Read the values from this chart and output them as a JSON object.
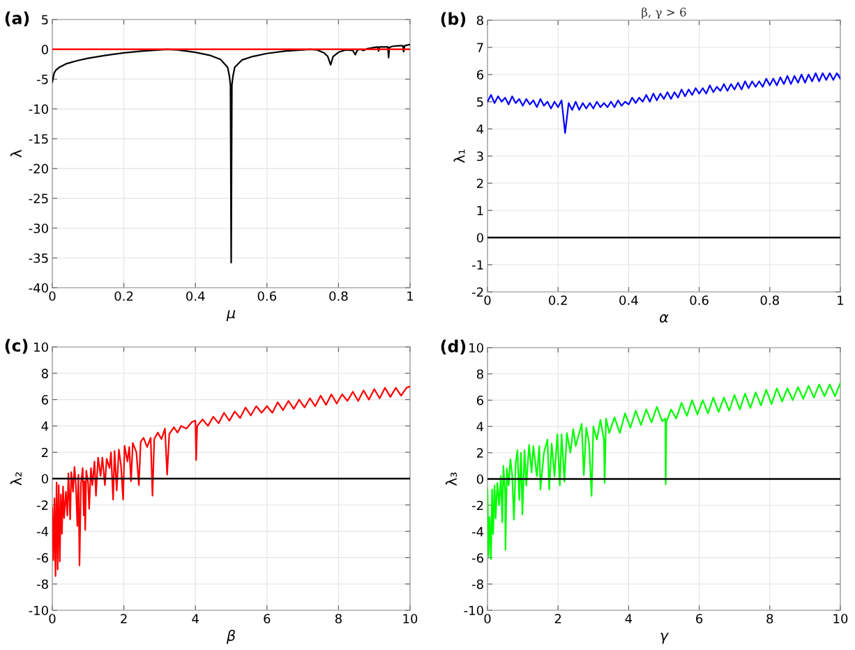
{
  "chart_data": [
    {
      "type": "line",
      "annotations": [
        "(a)"
      ],
      "xlabel": "μ",
      "ylabel": "λ",
      "xlim": [
        0,
        1
      ],
      "ylim": [
        -40,
        5
      ],
      "xticks": [
        0,
        0.2,
        0.4,
        0.6,
        0.8,
        1
      ],
      "yticks": [
        -40,
        -35,
        -30,
        -25,
        -20,
        -15,
        -10,
        -5,
        0,
        5
      ],
      "grid": true,
      "ref_lines": [
        {
          "axis": "y",
          "value": 0,
          "color": "#ff0000"
        }
      ],
      "series": [
        {
          "color": "#000000",
          "x": [
            0,
            0.005,
            0.01,
            0.02,
            0.04,
            0.07,
            0.1,
            0.15,
            0.2,
            0.25,
            0.3,
            0.32,
            0.35,
            0.4,
            0.44,
            0.47,
            0.49,
            0.495,
            0.498,
            0.5,
            0.502,
            0.505,
            0.51,
            0.53,
            0.56,
            0.6,
            0.65,
            0.7,
            0.72,
            0.74,
            0.76,
            0.77,
            0.778,
            0.785,
            0.8,
            0.82,
            0.84,
            0.847,
            0.852,
            0.86,
            0.87,
            0.88,
            0.89,
            0.9,
            0.91,
            0.912,
            0.915,
            0.93,
            0.938,
            0.94,
            0.942,
            0.95,
            0.97,
            0.98,
            0.982,
            0.985,
            1
          ],
          "values": [
            -5.5,
            -4,
            -3.5,
            -3,
            -2.4,
            -1.9,
            -1.5,
            -1.0,
            -0.6,
            -0.3,
            -0.1,
            0,
            -0.1,
            -0.5,
            -1.0,
            -1.7,
            -3,
            -4.5,
            -6,
            -35.8,
            -6,
            -4.5,
            -3,
            -1.8,
            -1.2,
            -0.7,
            -0.3,
            -0.1,
            0,
            -0.1,
            -0.6,
            -1.2,
            -2.6,
            -1.2,
            -0.5,
            -0.1,
            -0.2,
            -0.9,
            -0.2,
            0,
            -0.2,
            0.1,
            0.2,
            0.3,
            0.4,
            -0.3,
            0.4,
            0.4,
            0.4,
            -1.4,
            0.3,
            0.5,
            0.6,
            0.6,
            -0.4,
            0.6,
            0.8
          ]
        }
      ]
    },
    {
      "type": "line",
      "annotations": [
        "(b)"
      ],
      "title": "β, γ > 6",
      "xlabel": "α",
      "ylabel": "λ₁",
      "xlim": [
        0,
        1
      ],
      "ylim": [
        -2,
        8
      ],
      "xticks": [
        0,
        0.2,
        0.4,
        0.6,
        0.8,
        1
      ],
      "yticks": [
        -2,
        -1,
        0,
        1,
        2,
        3,
        4,
        5,
        6,
        7,
        8
      ],
      "grid": true,
      "ref_lines": [
        {
          "axis": "y",
          "value": 0,
          "color": "#000000"
        }
      ],
      "series": [
        {
          "color": "#0000ff",
          "x": [
            0,
            0.01,
            0.02,
            0.03,
            0.04,
            0.05,
            0.06,
            0.07,
            0.08,
            0.09,
            0.1,
            0.11,
            0.12,
            0.13,
            0.14,
            0.15,
            0.16,
            0.17,
            0.18,
            0.19,
            0.2,
            0.21,
            0.22,
            0.23,
            0.24,
            0.25,
            0.26,
            0.27,
            0.28,
            0.29,
            0.3,
            0.31,
            0.32,
            0.33,
            0.34,
            0.35,
            0.36,
            0.37,
            0.38,
            0.39,
            0.4,
            0.41,
            0.42,
            0.43,
            0.44,
            0.45,
            0.46,
            0.47,
            0.48,
            0.49,
            0.5,
            0.51,
            0.52,
            0.53,
            0.54,
            0.55,
            0.56,
            0.57,
            0.58,
            0.59,
            0.6,
            0.61,
            0.62,
            0.63,
            0.64,
            0.65,
            0.66,
            0.67,
            0.68,
            0.69,
            0.7,
            0.71,
            0.72,
            0.73,
            0.74,
            0.75,
            0.76,
            0.77,
            0.78,
            0.79,
            0.8,
            0.81,
            0.82,
            0.83,
            0.84,
            0.85,
            0.86,
            0.87,
            0.88,
            0.89,
            0.9,
            0.91,
            0.92,
            0.93,
            0.94,
            0.95,
            0.96,
            0.97,
            0.98,
            0.99,
            1
          ],
          "values": [
            5.0,
            5.25,
            4.95,
            5.2,
            5.0,
            5.15,
            4.9,
            5.2,
            4.95,
            5.1,
            4.85,
            5.1,
            4.9,
            5.05,
            4.8,
            5.1,
            4.85,
            5.0,
            4.75,
            5.0,
            4.8,
            5.05,
            3.85,
            4.95,
            4.7,
            5.0,
            4.7,
            4.95,
            4.75,
            4.95,
            4.75,
            5.0,
            4.8,
            4.95,
            4.8,
            5.0,
            4.8,
            5.05,
            4.85,
            5.0,
            4.9,
            5.15,
            4.95,
            5.15,
            5.0,
            5.25,
            5.0,
            5.3,
            5.05,
            5.3,
            5.1,
            5.35,
            5.1,
            5.35,
            5.15,
            5.45,
            5.2,
            5.45,
            5.25,
            5.5,
            5.3,
            5.5,
            5.3,
            5.6,
            5.35,
            5.55,
            5.4,
            5.65,
            5.4,
            5.65,
            5.45,
            5.7,
            5.45,
            5.75,
            5.5,
            5.75,
            5.55,
            5.75,
            5.55,
            5.85,
            5.6,
            5.85,
            5.6,
            5.9,
            5.65,
            5.95,
            5.65,
            5.95,
            5.7,
            6.0,
            5.7,
            6.0,
            5.75,
            6.05,
            5.75,
            6.05,
            5.8,
            6.05,
            5.8,
            6.05,
            5.85
          ]
        }
      ]
    },
    {
      "type": "line",
      "annotations": [
        "(c)"
      ],
      "xlabel": "β",
      "ylabel": "λ₂",
      "xlim": [
        0,
        10
      ],
      "ylim": [
        -10,
        10
      ],
      "xticks": [
        0,
        2,
        4,
        6,
        8,
        10
      ],
      "yticks": [
        -10,
        -8,
        -6,
        -4,
        -2,
        0,
        2,
        4,
        6,
        8,
        10
      ],
      "grid": true,
      "ref_lines": [
        {
          "axis": "y",
          "value": 0,
          "color": "#000000"
        }
      ],
      "series": [
        {
          "color": "#ff0000",
          "x": [
            0,
            0.03,
            0.06,
            0.09,
            0.12,
            0.15,
            0.18,
            0.21,
            0.24,
            0.27,
            0.3,
            0.33,
            0.38,
            0.42,
            0.45,
            0.5,
            0.53,
            0.58,
            0.62,
            0.66,
            0.7,
            0.73,
            0.76,
            0.8,
            0.85,
            0.88,
            0.9,
            0.92,
            0.95,
            1.0,
            1.03,
            1.08,
            1.12,
            1.18,
            1.22,
            1.28,
            1.35,
            1.4,
            1.47,
            1.52,
            1.6,
            1.64,
            1.7,
            1.74,
            1.8,
            1.86,
            1.92,
            1.98,
            2.02,
            2.1,
            2.15,
            2.2,
            2.25,
            2.35,
            2.42,
            2.47,
            2.55,
            2.65,
            2.75,
            2.8,
            2.85,
            2.95,
            3.05,
            3.15,
            3.21,
            3.27,
            3.4,
            3.5,
            3.6,
            3.75,
            3.9,
            4.0,
            4.02,
            4.05,
            4.2,
            4.35,
            4.5,
            4.65,
            4.8,
            4.95,
            5.1,
            5.25,
            5.4,
            5.55,
            5.7,
            5.85,
            6.0,
            6.15,
            6.3,
            6.45,
            6.6,
            6.75,
            6.9,
            7.05,
            7.2,
            7.35,
            7.5,
            7.65,
            7.8,
            7.95,
            8.1,
            8.25,
            8.4,
            8.55,
            8.7,
            8.85,
            9.0,
            9.15,
            9.3,
            9.45,
            9.6,
            9.75,
            9.9,
            10.0
          ],
          "values": [
            -2.2,
            -6.2,
            -1.5,
            -7.4,
            -0.3,
            -6.9,
            -0.5,
            -6.3,
            -1.2,
            -4.2,
            -0.6,
            -3.0,
            -1.0,
            -2.8,
            0.4,
            -3.1,
            0.5,
            -1.0,
            0.9,
            -0.5,
            -3.6,
            0.3,
            -6.6,
            -0.4,
            0.8,
            -2.8,
            -0.2,
            -3.9,
            0.6,
            -0.3,
            -2.3,
            0.8,
            -0.5,
            1.3,
            -1.3,
            1.6,
            0.2,
            1.6,
            -0.5,
            1.5,
            0.8,
            2.0,
            -1.6,
            2.1,
            -0.9,
            2.2,
            1.0,
            -1.6,
            2.5,
            1.3,
            2.4,
            -0.2,
            2.7,
            2.0,
            -0.5,
            2.8,
            3.1,
            2.4,
            3.1,
            -1.3,
            3.0,
            3.5,
            3.0,
            3.8,
            0.3,
            3.4,
            3.9,
            3.5,
            4.0,
            3.8,
            4.3,
            4.4,
            1.4,
            4.0,
            4.5,
            4.0,
            4.7,
            4.2,
            5.0,
            4.4,
            5.1,
            4.6,
            5.4,
            4.8,
            5.5,
            5.0,
            5.5,
            5.0,
            5.8,
            5.2,
            5.9,
            5.3,
            6.0,
            5.4,
            6.1,
            5.5,
            6.3,
            5.6,
            6.4,
            5.7,
            6.4,
            5.9,
            6.6,
            5.9,
            6.7,
            6.0,
            6.8,
            6.1,
            6.9,
            6.2,
            6.9,
            6.3,
            6.9,
            7.0
          ]
        }
      ]
    },
    {
      "type": "line",
      "annotations": [
        "(d)"
      ],
      "xlabel": "γ",
      "ylabel": "λ₃",
      "xlim": [
        0,
        10
      ],
      "ylim": [
        -10,
        10
      ],
      "xticks": [
        0,
        2,
        4,
        6,
        8,
        10
      ],
      "yticks": [
        -10,
        -8,
        -6,
        -4,
        -2,
        0,
        2,
        4,
        6,
        8,
        10
      ],
      "grid": true,
      "ref_lines": [
        {
          "axis": "y",
          "value": 0,
          "color": "#000000"
        }
      ],
      "series": [
        {
          "color": "#00ff00",
          "x": [
            0,
            0.03,
            0.06,
            0.1,
            0.13,
            0.16,
            0.2,
            0.23,
            0.28,
            0.33,
            0.38,
            0.42,
            0.45,
            0.5,
            0.51,
            0.55,
            0.6,
            0.65,
            0.7,
            0.75,
            0.8,
            0.85,
            0.9,
            0.95,
            0.99,
            1.05,
            1.1,
            1.18,
            1.25,
            1.3,
            1.4,
            1.47,
            1.5,
            1.6,
            1.7,
            1.75,
            1.82,
            1.9,
            1.98,
            2.05,
            2.1,
            2.18,
            2.25,
            2.35,
            2.43,
            2.5,
            2.6,
            2.67,
            2.73,
            2.8,
            2.88,
            2.95,
            3.0,
            3.1,
            3.2,
            3.3,
            3.32,
            3.36,
            3.45,
            3.6,
            3.75,
            3.9,
            4.05,
            4.2,
            4.35,
            4.5,
            4.65,
            4.8,
            4.95,
            5.04,
            5.05,
            5.07,
            5.2,
            5.35,
            5.5,
            5.65,
            5.8,
            5.95,
            6.1,
            6.25,
            6.4,
            6.55,
            6.7,
            6.85,
            7.0,
            7.15,
            7.3,
            7.45,
            7.6,
            7.75,
            7.9,
            8.05,
            8.2,
            8.35,
            8.5,
            8.65,
            8.8,
            8.95,
            9.1,
            9.25,
            9.4,
            9.55,
            9.7,
            9.85,
            10.0
          ],
          "values": [
            -0.8,
            -5.9,
            -2.9,
            -6.1,
            -0.8,
            -4.2,
            -0.5,
            -3.0,
            -0.3,
            -2.0,
            0.2,
            -3.3,
            1.0,
            -1.0,
            -5.4,
            0.8,
            -0.5,
            1.5,
            0.3,
            -3.1,
            1.2,
            2.2,
            -1.6,
            2.0,
            -2.7,
            2.2,
            -0.5,
            2.6,
            0.5,
            2.5,
            0.2,
            2.5,
            -0.8,
            2.0,
            3.0,
            -0.8,
            2.7,
            0.2,
            3.4,
            -0.5,
            3.4,
            -0.2,
            3.5,
            2.0,
            3.8,
            2.5,
            3.5,
            4.2,
            0.3,
            3.9,
            2.7,
            -1.3,
            4.0,
            3.0,
            4.5,
            3.0,
            -0.3,
            4.6,
            3.5,
            4.7,
            3.5,
            5.0,
            3.9,
            5.2,
            4.1,
            5.3,
            4.3,
            5.5,
            4.4,
            4.6,
            -0.4,
            4.3,
            5.3,
            4.6,
            5.8,
            4.8,
            6.0,
            4.9,
            6.0,
            5.0,
            6.2,
            5.1,
            6.2,
            5.2,
            6.4,
            5.3,
            6.5,
            5.4,
            6.6,
            5.6,
            6.8,
            5.7,
            6.9,
            5.9,
            6.9,
            6.0,
            7.0,
            6.1,
            7.1,
            6.2,
            7.2,
            6.3,
            7.2,
            6.3,
            7.3
          ]
        }
      ]
    }
  ]
}
